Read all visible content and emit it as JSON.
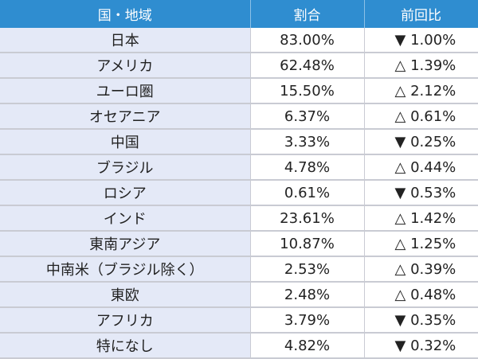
{
  "headers": [
    "国・地域",
    "割合",
    "前回比"
  ],
  "rows": [
    {
      "region": "日本",
      "share": "83.00%",
      "change": "▼ 1.00%"
    },
    {
      "region": "アメリカ",
      "share": "62.48%",
      "change": "△ 1.39%"
    },
    {
      "region": "ユーロ圏",
      "share": "15.50%",
      "change": "△ 2.12%"
    },
    {
      "region": "オセアニア",
      "share": "6.37%",
      "change": "△ 0.61%"
    },
    {
      "region": "中国",
      "share": "3.33%",
      "change": "▼ 0.25%"
    },
    {
      "region": "ブラジル",
      "share": "4.78%",
      "change": "△ 0.44%"
    },
    {
      "region": "ロシア",
      "share": "0.61%",
      "change": "▼ 0.53%"
    },
    {
      "region": "インド",
      "share": "23.61%",
      "change": "△ 1.42%"
    },
    {
      "region": "東南アジア",
      "share": "10.87%",
      "change": "△ 1.25%"
    },
    {
      "region": "中南米（ブラジル除く）",
      "share": "2.53%",
      "change": "△ 0.39%"
    },
    {
      "region": "東欧",
      "share": "2.48%",
      "change": "△ 0.48%"
    },
    {
      "region": "アフリカ",
      "share": "3.79%",
      "change": "▼ 0.35%"
    },
    {
      "region": "特になし",
      "share": "4.82%",
      "change": "▼ 0.32%"
    }
  ],
  "colors": {
    "header": "#2f8dd0",
    "region_bg": "#e4e9f7"
  }
}
